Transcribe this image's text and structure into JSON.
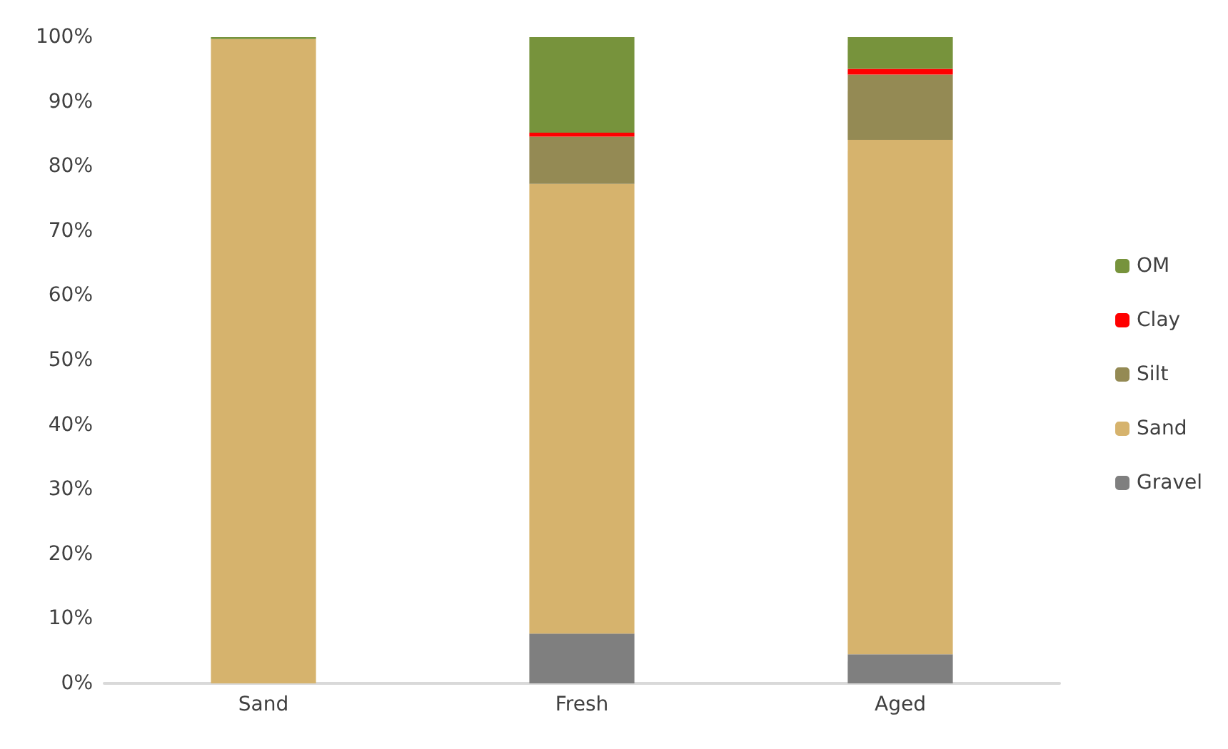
{
  "chart_data": {
    "type": "bar",
    "stacked": true,
    "categories": [
      "Sand",
      "Fresh",
      "Aged"
    ],
    "series": [
      {
        "name": "Gravel",
        "color": "#7f7f7f",
        "values": [
          0,
          7.7,
          4.5
        ]
      },
      {
        "name": "Sand",
        "color": "#d6b36d",
        "values": [
          99.7,
          69.6,
          79.6
        ]
      },
      {
        "name": "Silt",
        "color": "#948a54",
        "values": [
          0,
          7.3,
          10.1
        ]
      },
      {
        "name": "Clay",
        "color": "#ff0000",
        "values": [
          0,
          0.6,
          0.9
        ]
      },
      {
        "name": "OM",
        "color": "#77933c",
        "values": [
          0.3,
          14.8,
          4.9
        ]
      }
    ],
    "ylim": [
      0,
      100
    ],
    "yticks": [
      {
        "value": 0,
        "label": "0%"
      },
      {
        "value": 10,
        "label": "10%"
      },
      {
        "value": 20,
        "label": "20%"
      },
      {
        "value": 30,
        "label": "30%"
      },
      {
        "value": 40,
        "label": "40%"
      },
      {
        "value": 50,
        "label": "50%"
      },
      {
        "value": 60,
        "label": "60%"
      },
      {
        "value": 70,
        "label": "70%"
      },
      {
        "value": 80,
        "label": "80%"
      },
      {
        "value": 90,
        "label": "90%"
      },
      {
        "value": 100,
        "label": "100%"
      }
    ],
    "legend": "right",
    "grid": false
  }
}
